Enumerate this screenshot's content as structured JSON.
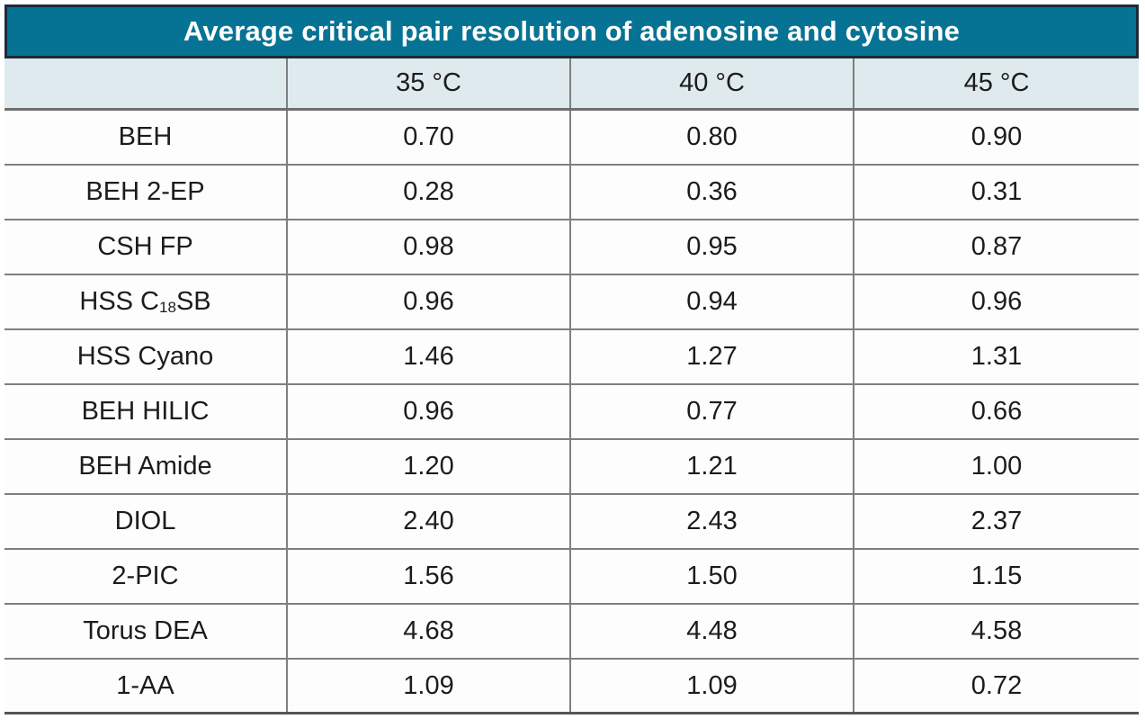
{
  "colors": {
    "title_band_bg": "#077394",
    "title_band_border": "#1b2b38",
    "title_text": "#ffffff",
    "header_row_bg": "#dfeaee",
    "gridline": "#7f7f7f",
    "body_text": "#1c1c1c"
  },
  "table": {
    "title": "Average critical pair resolution of adenosine and cytosine",
    "column_headers": [
      "35 °C",
      "40 °C",
      "45 °C"
    ],
    "rows": [
      {
        "label": {
          "pre": "BEH"
        },
        "values": [
          "0.70",
          "0.80",
          "0.90"
        ]
      },
      {
        "label": {
          "pre": "BEH 2-EP"
        },
        "values": [
          "0.28",
          "0.36",
          "0.31"
        ]
      },
      {
        "label": {
          "pre": "CSH FP"
        },
        "values": [
          "0.98",
          "0.95",
          "0.87"
        ]
      },
      {
        "label": {
          "pre": "HSS C",
          "sub": "18",
          "post": " SB"
        },
        "values": [
          "0.96",
          "0.94",
          "0.96"
        ]
      },
      {
        "label": {
          "pre": "HSS Cyano"
        },
        "values": [
          "1.46",
          "1.27",
          "1.31"
        ]
      },
      {
        "label": {
          "pre": "BEH HILIC"
        },
        "values": [
          "0.96",
          "0.77",
          "0.66"
        ]
      },
      {
        "label": {
          "pre": "BEH Amide"
        },
        "values": [
          "1.20",
          "1.21",
          "1.00"
        ]
      },
      {
        "label": {
          "pre": "DIOL"
        },
        "values": [
          "2.40",
          "2.43",
          "2.37"
        ]
      },
      {
        "label": {
          "pre": "2-PIC"
        },
        "values": [
          "1.56",
          "1.50",
          "1.15"
        ]
      },
      {
        "label": {
          "pre": "Torus DEA"
        },
        "values": [
          "4.68",
          "4.48",
          "4.58"
        ]
      },
      {
        "label": {
          "pre": "1-AA"
        },
        "values": [
          "1.09",
          "1.09",
          "0.72"
        ]
      }
    ]
  },
  "chart_data": {
    "type": "table",
    "title": "Average critical pair resolution of adenosine and cytosine",
    "categories": [
      "BEH",
      "BEH 2-EP",
      "CSH FP",
      "HSS C18 SB",
      "HSS Cyano",
      "BEH HILIC",
      "BEH Amide",
      "DIOL",
      "2-PIC",
      "Torus DEA",
      "1-AA"
    ],
    "series": [
      {
        "name": "35 °C",
        "values": [
          0.7,
          0.28,
          0.98,
          0.96,
          1.46,
          0.96,
          1.2,
          2.4,
          1.56,
          4.68,
          1.09
        ]
      },
      {
        "name": "40 °C",
        "values": [
          0.8,
          0.36,
          0.95,
          0.94,
          1.27,
          0.77,
          1.21,
          2.43,
          1.5,
          4.48,
          1.09
        ]
      },
      {
        "name": "45 °C",
        "values": [
          0.9,
          0.31,
          0.87,
          0.96,
          1.31,
          0.66,
          1.0,
          2.37,
          1.15,
          4.58,
          0.72
        ]
      }
    ]
  }
}
